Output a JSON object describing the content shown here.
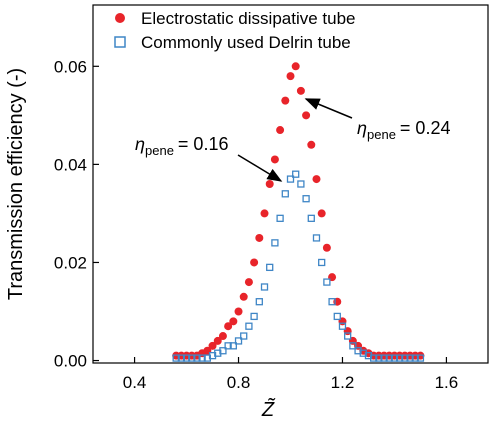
{
  "chart_data": {
    "type": "scatter",
    "x_label": "Z̃",
    "y_label": "Transmission efficiency (-)",
    "x": [
      0.56,
      0.58,
      0.6,
      0.62,
      0.64,
      0.66,
      0.68,
      0.7,
      0.72,
      0.74,
      0.76,
      0.78,
      0.8,
      0.82,
      0.84,
      0.86,
      0.88,
      0.9,
      0.92,
      0.94,
      0.96,
      0.98,
      1.0,
      1.02,
      1.04,
      1.06,
      1.08,
      1.1,
      1.12,
      1.14,
      1.16,
      1.18,
      1.2,
      1.22,
      1.24,
      1.26,
      1.28,
      1.3,
      1.32,
      1.34,
      1.36,
      1.38,
      1.4,
      1.42,
      1.44,
      1.46,
      1.48,
      1.5
    ],
    "series": [
      {
        "name": "Electrostatic dissipative tube",
        "color": "#e8242a",
        "marker": "filled-circle",
        "values": [
          0.001,
          0.001,
          0.001,
          0.001,
          0.001,
          0.0015,
          0.002,
          0.003,
          0.004,
          0.005,
          0.007,
          0.008,
          0.01,
          0.013,
          0.016,
          0.02,
          0.025,
          0.03,
          0.036,
          0.041,
          0.047,
          0.053,
          0.058,
          0.06,
          0.055,
          0.05,
          0.044,
          0.037,
          0.03,
          0.023,
          0.017,
          0.012,
          0.008,
          0.006,
          0.004,
          0.003,
          0.002,
          0.0015,
          0.001,
          0.001,
          0.001,
          0.001,
          0.001,
          0.001,
          0.001,
          0.001,
          0.001,
          0.001
        ]
      },
      {
        "name": "Commonly used Delrin tube",
        "color": "#3f86c6",
        "marker": "open-square",
        "values": [
          0.0005,
          0.0005,
          0.0005,
          0.0005,
          0.0005,
          0.0005,
          0.0005,
          0.001,
          0.0015,
          0.002,
          0.003,
          0.003,
          0.004,
          0.005,
          0.007,
          0.009,
          0.012,
          0.015,
          0.019,
          0.024,
          0.029,
          0.034,
          0.037,
          0.038,
          0.036,
          0.033,
          0.029,
          0.025,
          0.02,
          0.016,
          0.012,
          0.009,
          0.007,
          0.005,
          0.003,
          0.002,
          0.0015,
          0.001,
          0.0005,
          0.0005,
          0.0005,
          0.0005,
          0.0005,
          0.0005,
          0.0005,
          0.0005,
          0.0005,
          0.0005
        ]
      }
    ],
    "annotations": [
      {
        "symbol": "η",
        "subscript": "pene",
        "text": "= 0.16"
      },
      {
        "symbol": "η",
        "subscript": "pene",
        "text": "= 0.24"
      }
    ],
    "xlim": [
      0.24,
      1.76
    ],
    "ylim": [
      -0.0005,
      0.0725
    ],
    "xticks": [
      0.4,
      0.8,
      1.2,
      1.6
    ],
    "yticks": [
      {
        "value": 0,
        "label": "0.00"
      },
      {
        "value": 0.02,
        "label": "0.02"
      },
      {
        "value": 0.04,
        "label": "0.04"
      },
      {
        "value": 0.06,
        "label": "0.06"
      }
    ],
    "legend": "upper-left"
  }
}
